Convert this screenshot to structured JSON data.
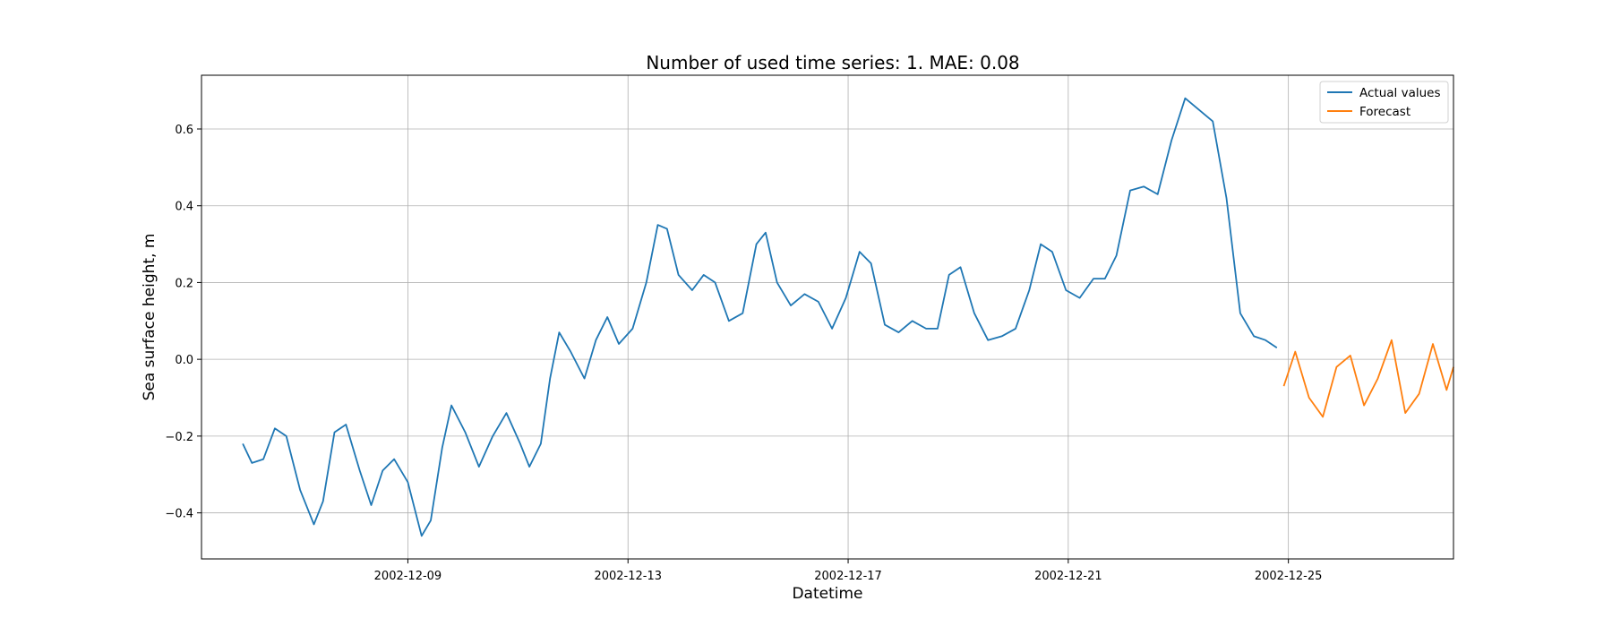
{
  "chart_data": {
    "type": "line",
    "title": "Number of used time series: 1. MAE: 0.08",
    "xlabel": "Datetime",
    "ylabel": "Sea surface height, m",
    "grid": true,
    "legend_position": "top-right",
    "x_type": "date",
    "xlim": [
      "2002-12-05T06:00",
      "2002-12-28T00:00"
    ],
    "ylim": [
      -0.52,
      0.74
    ],
    "x_ticks": [
      "2002-12-09",
      "2002-12-13",
      "2002-12-17",
      "2002-12-21",
      "2002-12-25"
    ],
    "y_ticks": [
      -0.4,
      -0.2,
      0.0,
      0.2,
      0.4,
      0.6
    ],
    "y_tick_labels": [
      "−0.4",
      "−0.2",
      "0.0",
      "0.2",
      "0.4",
      "0.6"
    ],
    "series": [
      {
        "name": "Actual values",
        "color": "#1f77b4",
        "points": [
          [
            "2002-12-06T00:00",
            -0.22
          ],
          [
            "2002-12-06T04:00",
            -0.27
          ],
          [
            "2002-12-06T09:00",
            -0.26
          ],
          [
            "2002-12-06T14:00",
            -0.18
          ],
          [
            "2002-12-06T19:00",
            -0.2
          ],
          [
            "2002-12-07T01:00",
            -0.34
          ],
          [
            "2002-12-07T07:00",
            -0.43
          ],
          [
            "2002-12-07T11:00",
            -0.37
          ],
          [
            "2002-12-07T16:00",
            -0.19
          ],
          [
            "2002-12-07T21:00",
            -0.17
          ],
          [
            "2002-12-08T03:00",
            -0.29
          ],
          [
            "2002-12-08T08:00",
            -0.38
          ],
          [
            "2002-12-08T13:00",
            -0.29
          ],
          [
            "2002-12-08T18:00",
            -0.26
          ],
          [
            "2002-12-09T00:00",
            -0.32
          ],
          [
            "2002-12-09T06:00",
            -0.46
          ],
          [
            "2002-12-09T10:00",
            -0.42
          ],
          [
            "2002-12-09T15:00",
            -0.23
          ],
          [
            "2002-12-09T19:00",
            -0.12
          ],
          [
            "2002-12-10T01:00",
            -0.19
          ],
          [
            "2002-12-10T07:00",
            -0.28
          ],
          [
            "2002-12-10T13:00",
            -0.2
          ],
          [
            "2002-12-10T19:00",
            -0.14
          ],
          [
            "2002-12-11T01:00",
            -0.22
          ],
          [
            "2002-12-11T05:00",
            -0.28
          ],
          [
            "2002-12-11T10:00",
            -0.22
          ],
          [
            "2002-12-11T14:00",
            -0.05
          ],
          [
            "2002-12-11T18:00",
            0.07
          ],
          [
            "2002-12-11T23:00",
            0.02
          ],
          [
            "2002-12-12T05:00",
            -0.05
          ],
          [
            "2002-12-12T10:00",
            0.05
          ],
          [
            "2002-12-12T15:00",
            0.11
          ],
          [
            "2002-12-12T20:00",
            0.04
          ],
          [
            "2002-12-13T02:00",
            0.08
          ],
          [
            "2002-12-13T08:00",
            0.2
          ],
          [
            "2002-12-13T13:00",
            0.35
          ],
          [
            "2002-12-13T17:00",
            0.34
          ],
          [
            "2002-12-13T22:00",
            0.22
          ],
          [
            "2002-12-14T04:00",
            0.18
          ],
          [
            "2002-12-14T09:00",
            0.22
          ],
          [
            "2002-12-14T14:00",
            0.2
          ],
          [
            "2002-12-14T20:00",
            0.1
          ],
          [
            "2002-12-15T02:00",
            0.12
          ],
          [
            "2002-12-15T08:00",
            0.3
          ],
          [
            "2002-12-15T12:00",
            0.33
          ],
          [
            "2002-12-15T17:00",
            0.2
          ],
          [
            "2002-12-15T23:00",
            0.14
          ],
          [
            "2002-12-16T05:00",
            0.17
          ],
          [
            "2002-12-16T11:00",
            0.15
          ],
          [
            "2002-12-16T17:00",
            0.08
          ],
          [
            "2002-12-16T23:00",
            0.16
          ],
          [
            "2002-12-17T05:00",
            0.28
          ],
          [
            "2002-12-17T10:00",
            0.25
          ],
          [
            "2002-12-17T16:00",
            0.09
          ],
          [
            "2002-12-17T22:00",
            0.07
          ],
          [
            "2002-12-18T04:00",
            0.1
          ],
          [
            "2002-12-18T10:00",
            0.08
          ],
          [
            "2002-12-18T15:00",
            0.08
          ],
          [
            "2002-12-18T20:00",
            0.22
          ],
          [
            "2002-12-19T01:00",
            0.24
          ],
          [
            "2002-12-19T07:00",
            0.12
          ],
          [
            "2002-12-19T13:00",
            0.05
          ],
          [
            "2002-12-19T19:00",
            0.06
          ],
          [
            "2002-12-20T01:00",
            0.08
          ],
          [
            "2002-12-20T07:00",
            0.18
          ],
          [
            "2002-12-20T12:00",
            0.3
          ],
          [
            "2002-12-20T17:00",
            0.28
          ],
          [
            "2002-12-20T23:00",
            0.18
          ],
          [
            "2002-12-21T05:00",
            0.16
          ],
          [
            "2002-12-21T11:00",
            0.21
          ],
          [
            "2002-12-21T16:00",
            0.21
          ],
          [
            "2002-12-21T21:00",
            0.27
          ],
          [
            "2002-12-22T03:00",
            0.44
          ],
          [
            "2002-12-22T09:00",
            0.45
          ],
          [
            "2002-12-22T15:00",
            0.43
          ],
          [
            "2002-12-22T21:00",
            0.57
          ],
          [
            "2002-12-23T03:00",
            0.68
          ],
          [
            "2002-12-23T09:00",
            0.65
          ],
          [
            "2002-12-23T15:00",
            0.62
          ],
          [
            "2002-12-23T21:00",
            0.42
          ],
          [
            "2002-12-24T03:00",
            0.12
          ],
          [
            "2002-12-24T09:00",
            0.06
          ],
          [
            "2002-12-24T14:00",
            0.05
          ],
          [
            "2002-12-24T19:00",
            0.03
          ]
        ]
      },
      {
        "name": "Forecast",
        "color": "#ff7f0e",
        "points": [
          [
            "2002-12-24T22:00",
            -0.07
          ],
          [
            "2002-12-25T03:00",
            0.02
          ],
          [
            "2002-12-25T09:00",
            -0.1
          ],
          [
            "2002-12-25T15:00",
            -0.15
          ],
          [
            "2002-12-25T21:00",
            -0.02
          ],
          [
            "2002-12-26T03:00",
            0.01
          ],
          [
            "2002-12-26T09:00",
            -0.12
          ],
          [
            "2002-12-26T15:00",
            -0.05
          ],
          [
            "2002-12-26T21:00",
            0.05
          ],
          [
            "2002-12-27T03:00",
            -0.14
          ],
          [
            "2002-12-27T09:00",
            -0.09
          ],
          [
            "2002-12-27T15:00",
            0.04
          ],
          [
            "2002-12-27T21:00",
            -0.08
          ],
          [
            "2002-12-28T00:00",
            -0.02
          ]
        ]
      }
    ]
  }
}
